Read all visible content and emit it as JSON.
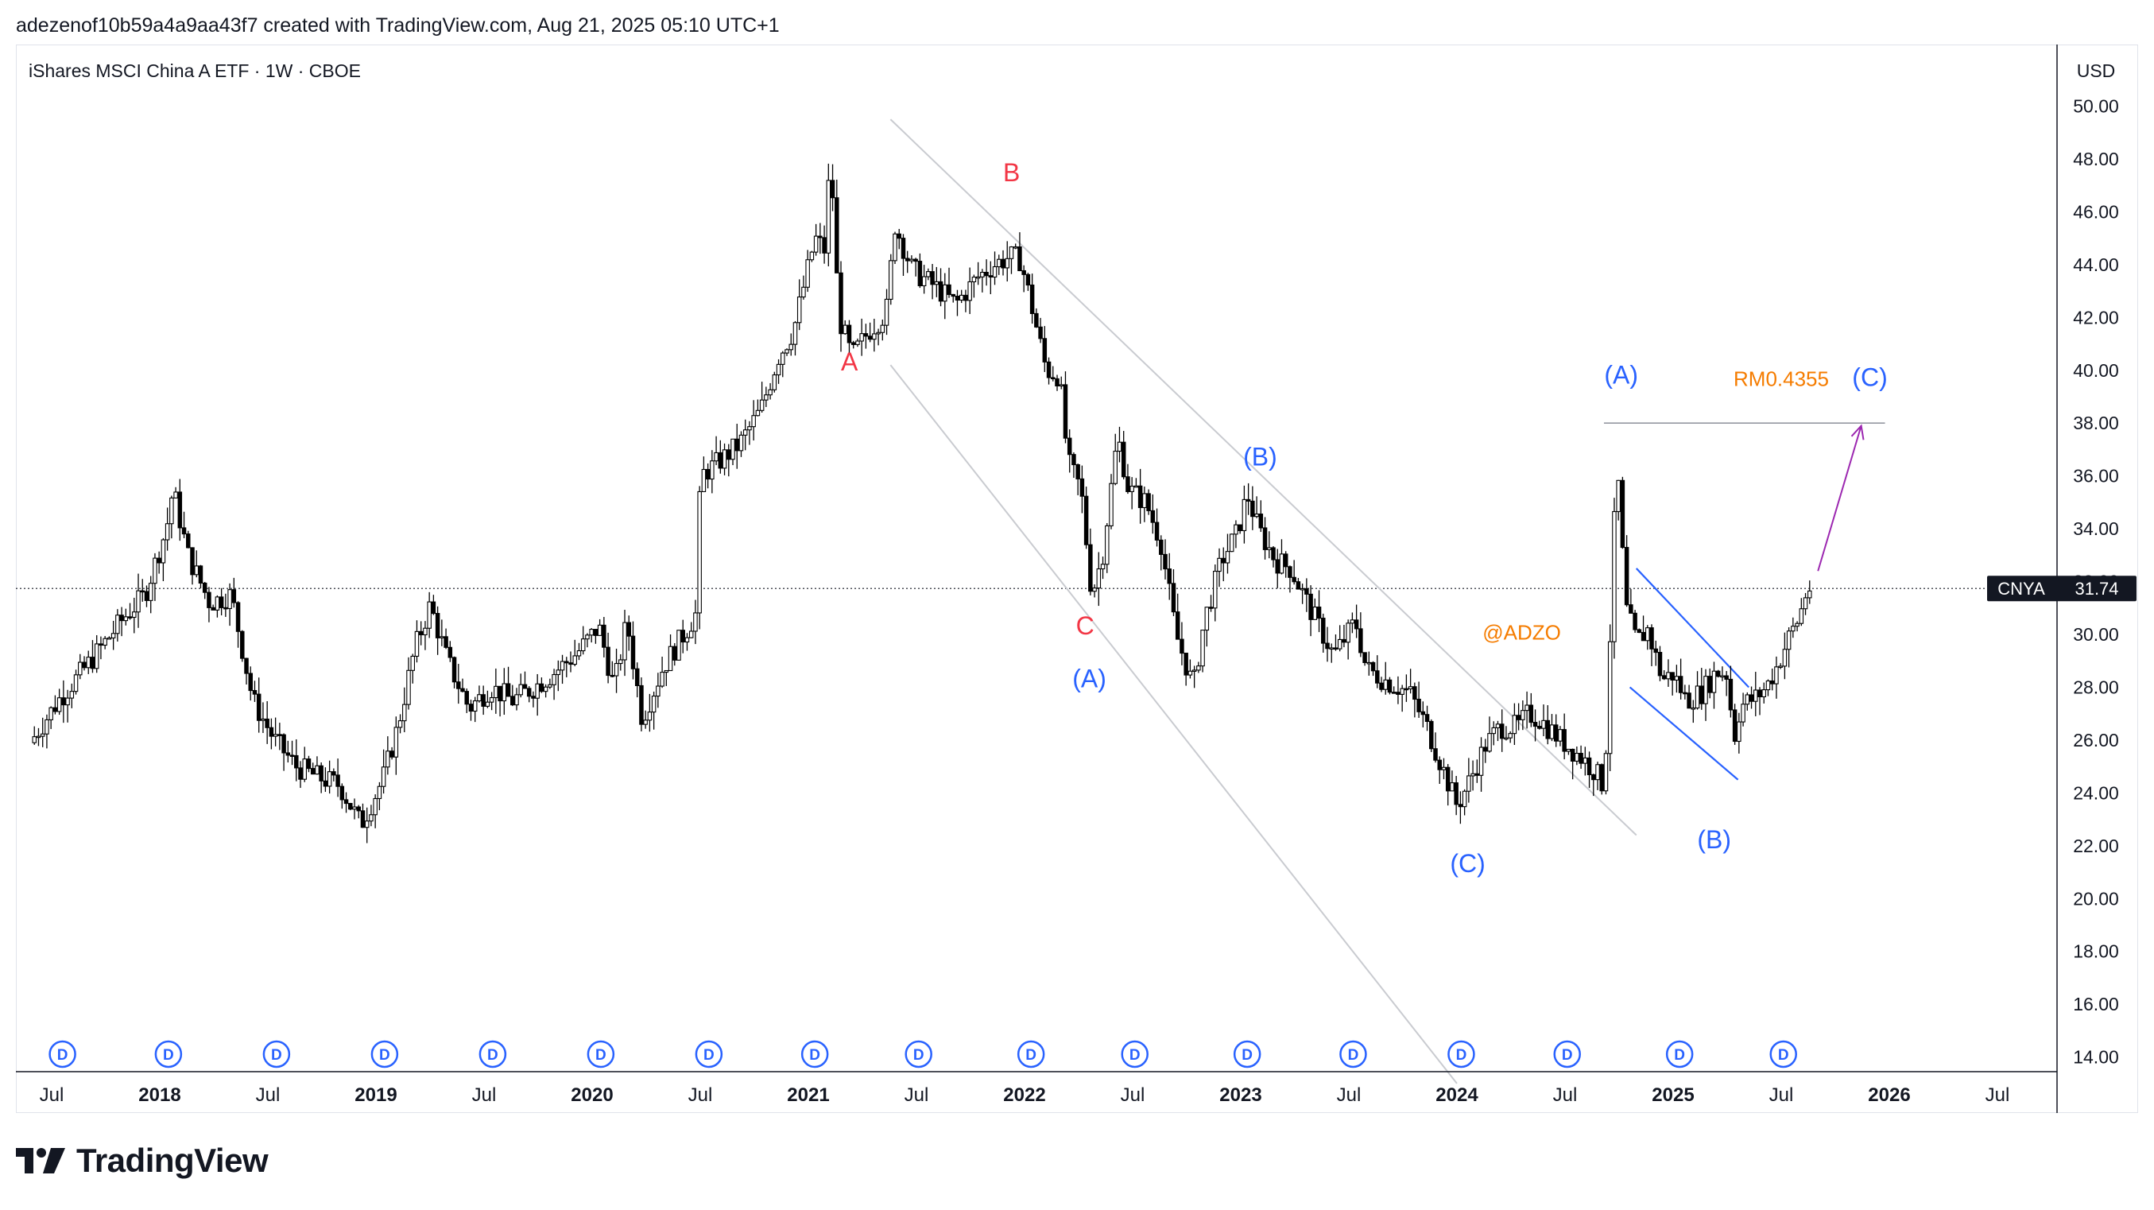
{
  "header": {
    "caption": "adezenof10b59a4a9aa43f7 created with TradingView.com, Aug 21, 2025 05:10 UTC+1"
  },
  "chart_data": {
    "type": "candlestick",
    "title": "iShares MSCI China A ETF · 1W · CBOE",
    "currency": "USD",
    "price_label": {
      "symbol": "CNYA",
      "value": "31.74"
    },
    "last_price": 31.74,
    "ylim": [
      13,
      51
    ],
    "y_ticks": [
      "14.00",
      "16.00",
      "18.00",
      "20.00",
      "22.00",
      "24.00",
      "26.00",
      "28.00",
      "30.00",
      "32.00",
      "34.00",
      "36.00",
      "38.00",
      "40.00",
      "42.00",
      "44.00",
      "46.00",
      "48.00",
      "50.00"
    ],
    "x_range": [
      2017.42,
      2026.96
    ],
    "x_ticks": [
      {
        "t": 2017.5,
        "label": "Jul",
        "bold": false
      },
      {
        "t": 2018.0,
        "label": "2018",
        "bold": true
      },
      {
        "t": 2018.5,
        "label": "Jul",
        "bold": false
      },
      {
        "t": 2019.0,
        "label": "2019",
        "bold": true
      },
      {
        "t": 2019.5,
        "label": "Jul",
        "bold": false
      },
      {
        "t": 2020.0,
        "label": "2020",
        "bold": true
      },
      {
        "t": 2020.5,
        "label": "Jul",
        "bold": false
      },
      {
        "t": 2021.0,
        "label": "2021",
        "bold": true
      },
      {
        "t": 2021.5,
        "label": "Jul",
        "bold": false
      },
      {
        "t": 2022.0,
        "label": "2022",
        "bold": true
      },
      {
        "t": 2022.5,
        "label": "Jul",
        "bold": false
      },
      {
        "t": 2023.0,
        "label": "2023",
        "bold": true
      },
      {
        "t": 2023.5,
        "label": "Jul",
        "bold": false
      },
      {
        "t": 2024.0,
        "label": "2024",
        "bold": true
      },
      {
        "t": 2024.5,
        "label": "Jul",
        "bold": false
      },
      {
        "t": 2025.0,
        "label": "2025",
        "bold": true
      },
      {
        "t": 2025.5,
        "label": "Jul",
        "bold": false
      },
      {
        "t": 2026.0,
        "label": "2026",
        "bold": true
      },
      {
        "t": 2026.5,
        "label": "Jul",
        "bold": false
      }
    ],
    "price_path": [
      [
        2017.42,
        25.9
      ],
      [
        2017.55,
        27.5
      ],
      [
        2017.7,
        29.0
      ],
      [
        2017.85,
        30.6
      ],
      [
        2017.95,
        31.5
      ],
      [
        2018.05,
        34.0
      ],
      [
        2018.08,
        35.5
      ],
      [
        2018.15,
        33.0
      ],
      [
        2018.25,
        31.2
      ],
      [
        2018.35,
        31.5
      ],
      [
        2018.45,
        27.5
      ],
      [
        2018.55,
        26.0
      ],
      [
        2018.65,
        25.0
      ],
      [
        2018.75,
        24.6
      ],
      [
        2018.85,
        24.3
      ],
      [
        2018.95,
        22.8
      ],
      [
        2019.05,
        24.5
      ],
      [
        2019.12,
        26.5
      ],
      [
        2019.2,
        29.5
      ],
      [
        2019.27,
        31.1
      ],
      [
        2019.35,
        29.0
      ],
      [
        2019.45,
        27.2
      ],
      [
        2019.55,
        28.0
      ],
      [
        2019.65,
        27.5
      ],
      [
        2019.75,
        28.0
      ],
      [
        2019.85,
        28.6
      ],
      [
        2019.95,
        29.3
      ],
      [
        2020.05,
        30.3
      ],
      [
        2020.12,
        28.0
      ],
      [
        2020.18,
        30.5
      ],
      [
        2020.25,
        26.8
      ],
      [
        2020.35,
        28.8
      ],
      [
        2020.45,
        30.1
      ],
      [
        2020.5,
        30.8
      ],
      [
        2020.52,
        36.0
      ],
      [
        2020.6,
        36.5
      ],
      [
        2020.7,
        37.2
      ],
      [
        2020.8,
        38.5
      ],
      [
        2020.88,
        40.5
      ],
      [
        2020.95,
        41.5
      ],
      [
        2021.05,
        45.0
      ],
      [
        2021.1,
        44.5
      ],
      [
        2021.12,
        48.5
      ],
      [
        2021.16,
        42.0
      ],
      [
        2021.22,
        40.5
      ],
      [
        2021.3,
        41.5
      ],
      [
        2021.38,
        42.2
      ],
      [
        2021.42,
        45.5
      ],
      [
        2021.5,
        43.8
      ],
      [
        2021.6,
        43.2
      ],
      [
        2021.7,
        42.5
      ],
      [
        2021.8,
        43.5
      ],
      [
        2021.88,
        44.0
      ],
      [
        2021.95,
        44.3
      ],
      [
        2022.0,
        44.2
      ],
      [
        2022.05,
        42.5
      ],
      [
        2022.12,
        40.0
      ],
      [
        2022.18,
        39.8
      ],
      [
        2022.22,
        36.5
      ],
      [
        2022.28,
        35.5
      ],
      [
        2022.33,
        31.5
      ],
      [
        2022.38,
        33.0
      ],
      [
        2022.45,
        37.5
      ],
      [
        2022.5,
        35.5
      ],
      [
        2022.58,
        35.0
      ],
      [
        2022.65,
        33.5
      ],
      [
        2022.72,
        30.0
      ],
      [
        2022.8,
        28.0
      ],
      [
        2022.85,
        30.5
      ],
      [
        2022.93,
        32.8
      ],
      [
        2023.0,
        33.8
      ],
      [
        2023.05,
        35.3
      ],
      [
        2023.1,
        34.0
      ],
      [
        2023.18,
        32.8
      ],
      [
        2023.25,
        32.5
      ],
      [
        2023.35,
        30.8
      ],
      [
        2023.45,
        29.2
      ],
      [
        2023.55,
        30.5
      ],
      [
        2023.6,
        28.7
      ],
      [
        2023.7,
        28.2
      ],
      [
        2023.8,
        27.8
      ],
      [
        2023.88,
        26.5
      ],
      [
        2023.95,
        25.0
      ],
      [
        2024.02,
        23.5
      ],
      [
        2024.08,
        24.5
      ],
      [
        2024.15,
        25.8
      ],
      [
        2024.22,
        26.5
      ],
      [
        2024.3,
        26.5
      ],
      [
        2024.35,
        27.0
      ],
      [
        2024.4,
        26.8
      ],
      [
        2024.5,
        26.0
      ],
      [
        2024.6,
        25.3
      ],
      [
        2024.66,
        24.8
      ],
      [
        2024.7,
        24.2
      ],
      [
        2024.72,
        28.0
      ],
      [
        2024.74,
        33.0
      ],
      [
        2024.76,
        36.5
      ],
      [
        2024.8,
        31.0
      ],
      [
        2024.85,
        29.7
      ],
      [
        2024.9,
        30.2
      ],
      [
        2024.97,
        28.3
      ],
      [
        2025.02,
        28.5
      ],
      [
        2025.08,
        27.5
      ],
      [
        2025.15,
        27.8
      ],
      [
        2025.22,
        28.6
      ],
      [
        2025.27,
        28.5
      ],
      [
        2025.3,
        26.0
      ],
      [
        2025.33,
        27.3
      ],
      [
        2025.4,
        27.6
      ],
      [
        2025.45,
        28.0
      ],
      [
        2025.5,
        28.8
      ],
      [
        2025.55,
        29.8
      ],
      [
        2025.6,
        30.6
      ],
      [
        2025.64,
        31.74
      ]
    ],
    "annotations": [
      {
        "text": "A",
        "t": 2021.19,
        "y": 40.0,
        "color": "#f23645"
      },
      {
        "text": "B",
        "t": 2021.94,
        "y": 47.15,
        "color": "#f23645"
      },
      {
        "text": "C",
        "t": 2022.28,
        "y": 30.0,
        "color": "#f23645"
      },
      {
        "text": "(A)",
        "t": 2022.3,
        "y": 28.0,
        "color": "#2962ff"
      },
      {
        "text": "(B)",
        "t": 2023.09,
        "y": 36.4,
        "color": "#2962ff"
      },
      {
        "text": "(C)",
        "t": 2024.05,
        "y": 21.0,
        "color": "#2962ff"
      },
      {
        "text": "(A)",
        "t": 2024.76,
        "y": 39.5,
        "color": "#2962ff"
      },
      {
        "text": "(B)",
        "t": 2025.19,
        "y": 21.9,
        "color": "#2962ff"
      },
      {
        "text": "(C)",
        "t": 2025.91,
        "y": 39.4,
        "color": "#2962ff"
      },
      {
        "text": "RM0.4355",
        "t": 2025.5,
        "y": 39.4,
        "color": "#f57c00"
      },
      {
        "text": "@ADZO",
        "t": 2024.3,
        "y": 29.8,
        "color": "#f57c00"
      }
    ],
    "dividend_markers": [
      2017.55,
      2018.04,
      2018.54,
      2019.04,
      2019.54,
      2020.04,
      2020.54,
      2021.03,
      2021.51,
      2022.03,
      2022.51,
      2023.03,
      2023.52,
      2024.02,
      2024.51,
      2025.03,
      2025.51
    ],
    "dividend_icon_label": "D",
    "drawings": {
      "channel_upper": [
        [
          2021.38,
          49.5
        ],
        [
          2024.83,
          22.4
        ]
      ],
      "channel_lower": [
        [
          2021.38,
          40.2
        ],
        [
          2024.0,
          13.0
        ]
      ],
      "resistance": [
        [
          2024.68,
          38.0
        ],
        [
          2025.98,
          38.0
        ]
      ],
      "flag_upper": [
        [
          2024.83,
          32.5
        ],
        [
          2025.35,
          28.0
        ]
      ],
      "flag_lower": [
        [
          2024.8,
          28.0
        ],
        [
          2025.3,
          24.5
        ]
      ],
      "projection_arrow": [
        [
          2025.67,
          32.4
        ],
        [
          2025.87,
          37.9
        ]
      ]
    },
    "grid": false
  }
}
